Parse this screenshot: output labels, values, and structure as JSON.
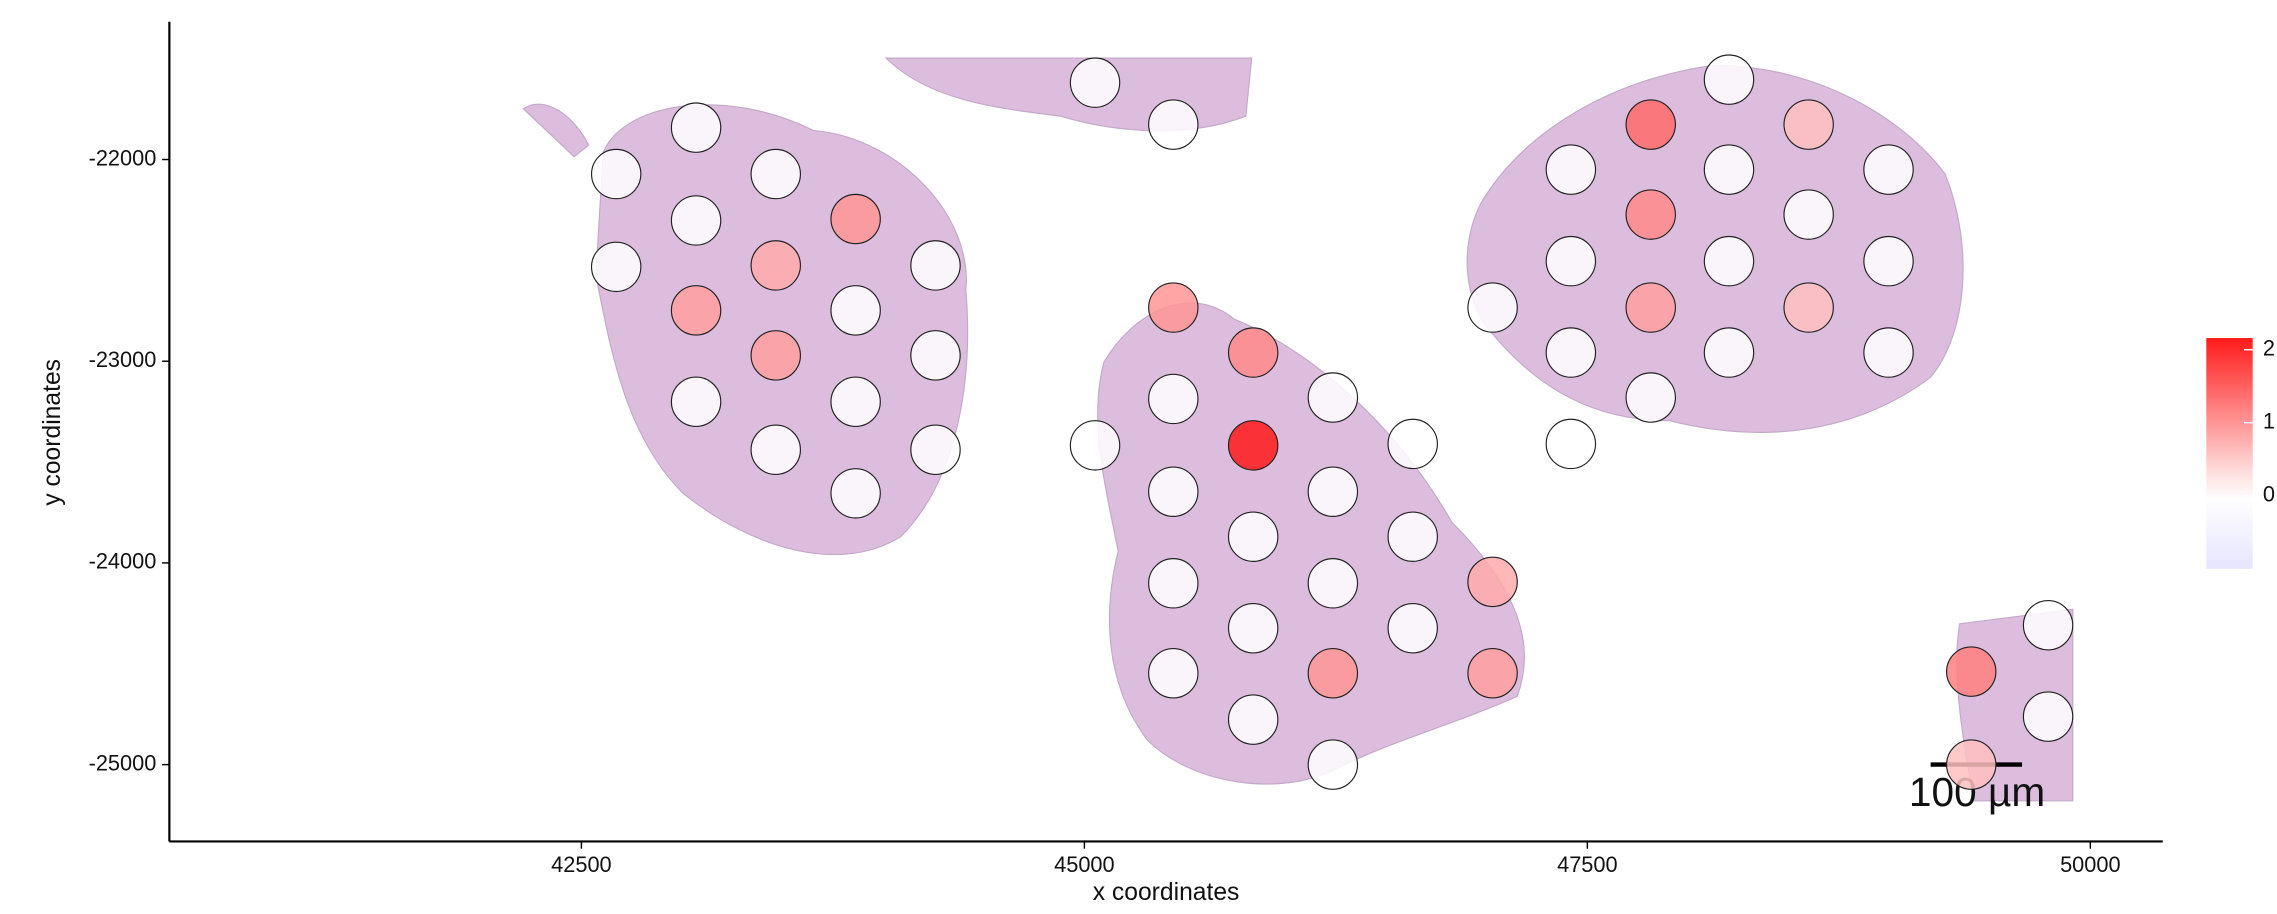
{
  "chart_data": {
    "type": "scatter",
    "xlabel": "x coordinates",
    "ylabel": "y coordinates",
    "xlim": [
      40452,
      50360
    ],
    "ylim": [
      -25381,
      -21317
    ],
    "xticks": [
      42500,
      45000,
      47500,
      50000
    ],
    "yticks": [
      -22000,
      -23000,
      -24000,
      -25000
    ],
    "low_color": "#e6e4ff",
    "mid_color": "#ffffff",
    "high_color": "#ff1a1a",
    "colorbar": {
      "lim": [
        -1,
        2.16
      ],
      "ticks": [
        0,
        1,
        2
      ]
    },
    "annotation": "100 µm",
    "x": [
      43070,
      42673,
      43466,
      43070,
      43863,
      42673,
      43466,
      44260,
      43070,
      43863,
      43466,
      44260,
      43070,
      43863,
      43466,
      44260,
      43863,
      45053,
      45442,
      45442,
      45839,
      46235,
      45442,
      45053,
      45839,
      46632,
      45442,
      46235,
      45839,
      46632,
      45442,
      46235,
      47029,
      45839,
      46632,
      45442,
      46235,
      47029,
      45839,
      46235,
      48204,
      47815,
      48600,
      47418,
      48204,
      48997,
      47815,
      48600,
      47418,
      48204,
      48997,
      47029,
      47815,
      48600,
      47418,
      48204,
      48997,
      47815,
      47418,
      49790,
      49408,
      49790,
      49408
    ],
    "y": [
      -21842,
      -22072,
      -22072,
      -22302,
      -22295,
      -22532,
      -22525,
      -22525,
      -22748,
      -22748,
      -22971,
      -22971,
      -23201,
      -23201,
      -23439,
      -23439,
      -23655,
      -21619,
      -21827,
      -22734,
      -22957,
      -23180,
      -23187,
      -23417,
      -23417,
      -23410,
      -23647,
      -23647,
      -23870,
      -23870,
      -24101,
      -24101,
      -24094,
      -24324,
      -24324,
      -24547,
      -24547,
      -24547,
      -24777,
      -25000,
      -21604,
      -21827,
      -21827,
      -22050,
      -22050,
      -22050,
      -22273,
      -22273,
      -22504,
      -22504,
      -22504,
      -22734,
      -22734,
      -22734,
      -22957,
      -22957,
      -22957,
      -23180,
      -23410,
      -24309,
      -24539,
      -24762,
      -25000
    ],
    "values": [
      0,
      0,
      0,
      0,
      1.0,
      0,
      0.8,
      0,
      0.9,
      0,
      0.9,
      0,
      0,
      0,
      0,
      0,
      0,
      0,
      0,
      1.0,
      1.1,
      0,
      0,
      0,
      2.2,
      0,
      0,
      0,
      0,
      0,
      0,
      0,
      0.8,
      0,
      0,
      0,
      1.0,
      0.9,
      0,
      0,
      0,
      1.4,
      0.6,
      0,
      0,
      0,
      1.1,
      0,
      0,
      0,
      0,
      0,
      0.9,
      0.6,
      0,
      0,
      0,
      0,
      0,
      0,
      1.2,
      0,
      0.6
    ]
  }
}
